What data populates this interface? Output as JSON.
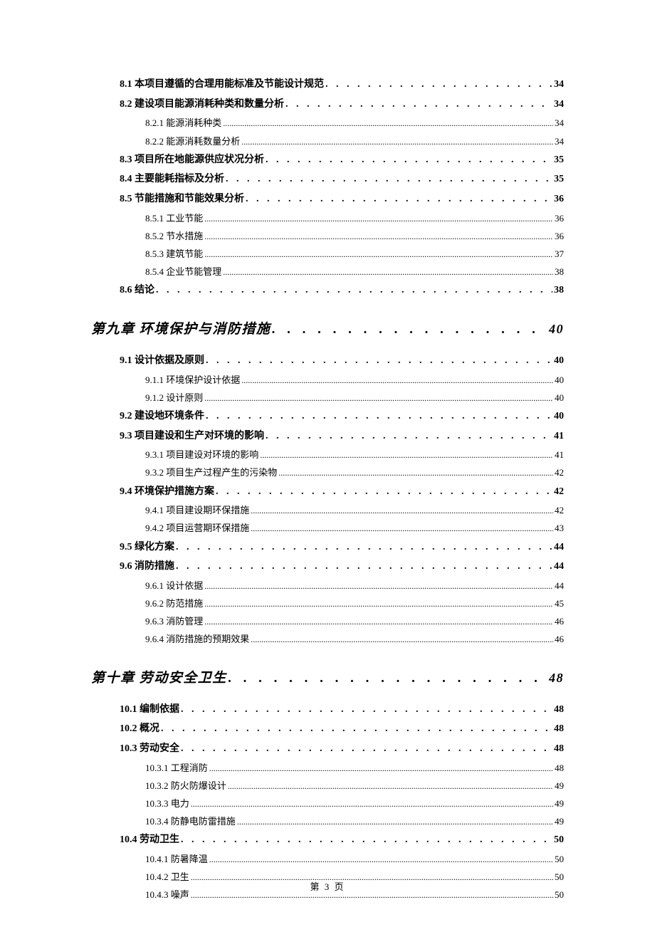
{
  "footer": "第 3 页",
  "colors": {
    "text": "#000000",
    "background": "#ffffff"
  },
  "toc": [
    {
      "level": "section",
      "label": "8.1 本项目遵循的合理用能标准及节能设计规范",
      "page": "34"
    },
    {
      "level": "section",
      "label": "8.2 建设项目能源消耗种类和数量分析",
      "page": "34"
    },
    {
      "level": "subsection",
      "label": "8.2.1 能源消耗种类",
      "page": "34"
    },
    {
      "level": "subsection",
      "label": "8.2.2 能源消耗数量分析",
      "page": "34"
    },
    {
      "level": "section",
      "label": "8.3 项目所在地能源供应状况分析",
      "page": "35"
    },
    {
      "level": "section",
      "label": "8.4 主要能耗指标及分析",
      "page": "35"
    },
    {
      "level": "section",
      "label": "8.5 节能措施和节能效果分析",
      "page": "36"
    },
    {
      "level": "subsection",
      "label": "8.5.1 工业节能",
      "page": "36"
    },
    {
      "level": "subsection",
      "label": "8.5.2 节水措施",
      "page": "36"
    },
    {
      "level": "subsection",
      "label": "8.5.3 建筑节能",
      "page": "37"
    },
    {
      "level": "subsection",
      "label": "8.5.4 企业节能管理",
      "page": "38"
    },
    {
      "level": "section",
      "label": "8.6 结论",
      "page": "38"
    },
    {
      "level": "chapter",
      "label": "第九章 环境保护与消防措施",
      "page": "40"
    },
    {
      "level": "section",
      "label": "9.1 设计依据及原则",
      "page": "40"
    },
    {
      "level": "subsection",
      "label": "9.1.1 环境保护设计依据",
      "page": "40"
    },
    {
      "level": "subsection",
      "label": "9.1.2 设计原则",
      "page": "40"
    },
    {
      "level": "section",
      "label": "9.2 建设地环境条件",
      "page": "40"
    },
    {
      "level": "section",
      "label": "9.3  项目建设和生产对环境的影响",
      "page": "41"
    },
    {
      "level": "subsection",
      "label": "9.3.1  项目建设对环境的影响",
      "page": "41"
    },
    {
      "level": "subsection",
      "label": "9.3.2 项目生产过程产生的污染物",
      "page": "42"
    },
    {
      "level": "section",
      "label": "9.4  环境保护措施方案",
      "page": "42"
    },
    {
      "level": "subsection",
      "label": "9.4.1  项目建设期环保措施",
      "page": "42"
    },
    {
      "level": "subsection",
      "label": "9.4.2  项目运营期环保措施",
      "page": "43"
    },
    {
      "level": "section",
      "label": "9.5 绿化方案",
      "page": "44"
    },
    {
      "level": "section",
      "label": "9.6 消防措施",
      "page": "44"
    },
    {
      "level": "subsection",
      "label": "9.6.1 设计依据",
      "page": "44"
    },
    {
      "level": "subsection",
      "label": "9.6.2 防范措施",
      "page": "45"
    },
    {
      "level": "subsection",
      "label": "9.6.3 消防管理",
      "page": "46"
    },
    {
      "level": "subsection",
      "label": "9.6.4 消防措施的预期效果",
      "page": "46"
    },
    {
      "level": "chapter",
      "label": "第十章 劳动安全卫生",
      "page": "48"
    },
    {
      "level": "section",
      "label": "10.1  编制依据",
      "page": "48"
    },
    {
      "level": "section",
      "label": "10.2 概况",
      "page": "48"
    },
    {
      "level": "section",
      "label": "10.3  劳动安全",
      "page": "48"
    },
    {
      "level": "subsection",
      "label": "10.3.1 工程消防",
      "page": "48"
    },
    {
      "level": "subsection",
      "label": "10.3.2 防火防爆设计",
      "page": "49"
    },
    {
      "level": "subsection",
      "label": "10.3.3 电力",
      "page": "49"
    },
    {
      "level": "subsection",
      "label": "10.3.4 防静电防雷措施",
      "page": "49"
    },
    {
      "level": "section",
      "label": "10.4 劳动卫生",
      "page": "50"
    },
    {
      "level": "subsection",
      "label": "10.4.1 防暑降温",
      "page": "50"
    },
    {
      "level": "subsection",
      "label": "10.4.2 卫生",
      "page": "50"
    },
    {
      "level": "subsection",
      "label": "10.4.3 噪声",
      "page": "50"
    }
  ]
}
